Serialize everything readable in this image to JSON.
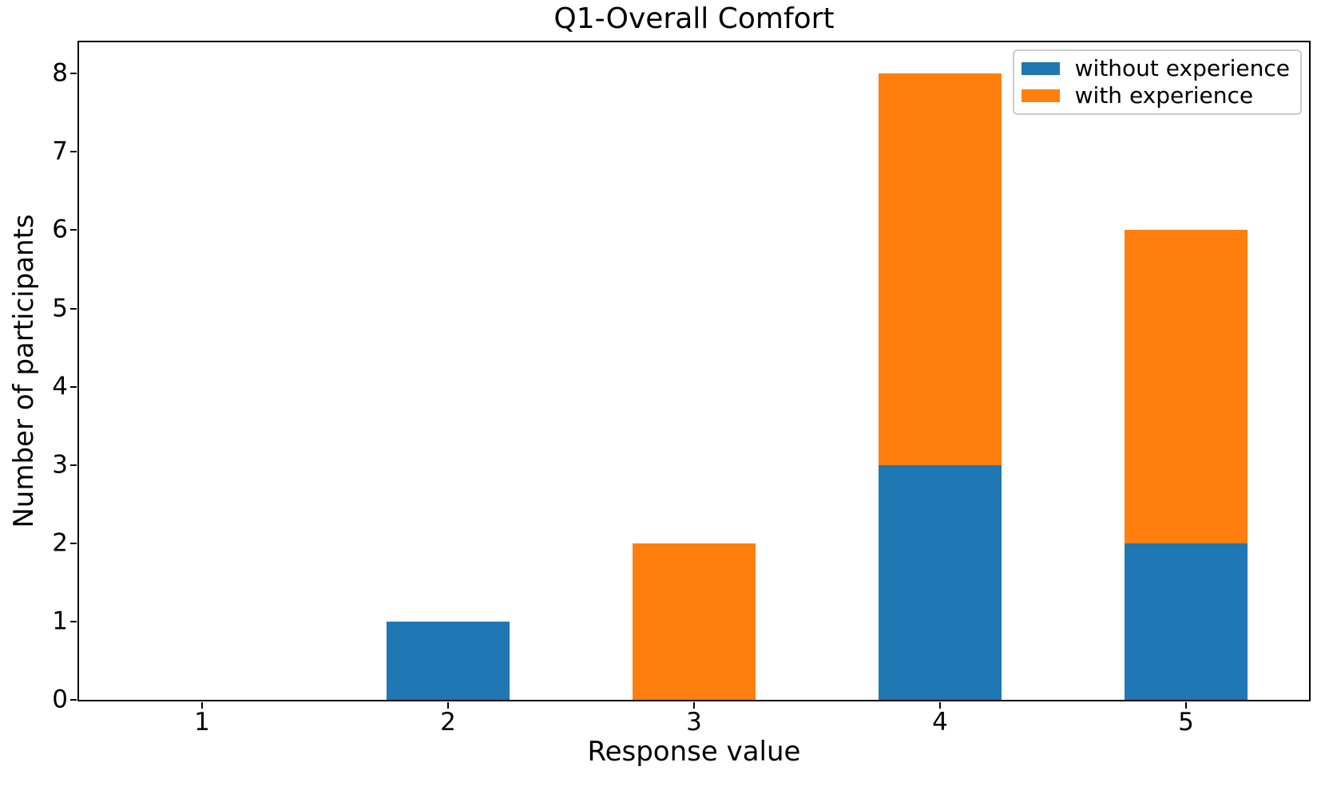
{
  "chart_data": {
    "type": "bar",
    "stacked": true,
    "title": "Q1-Overall Comfort",
    "xlabel": "Response value",
    "ylabel": "Number of participants",
    "categories": [
      "1",
      "2",
      "3",
      "4",
      "5"
    ],
    "series": [
      {
        "name": "without experience",
        "color": "#1f77b4",
        "values": [
          0,
          1,
          0,
          3,
          2
        ]
      },
      {
        "name": "with experience",
        "color": "#ff7f0e",
        "values": [
          0,
          0,
          2,
          5,
          4
        ]
      }
    ],
    "totals": [
      0,
      1,
      2,
      8,
      6
    ],
    "yticks": [
      0,
      1,
      2,
      3,
      4,
      5,
      6,
      7,
      8
    ],
    "ylim": [
      0,
      8.4
    ],
    "bar_width_fraction": 0.5,
    "grid": false,
    "legend": {
      "position": "upper right",
      "entries": [
        "without experience",
        "with experience"
      ]
    },
    "colors": {
      "axis": "#000000",
      "background": "#ffffff",
      "legend_border": "#cccccc"
    }
  }
}
